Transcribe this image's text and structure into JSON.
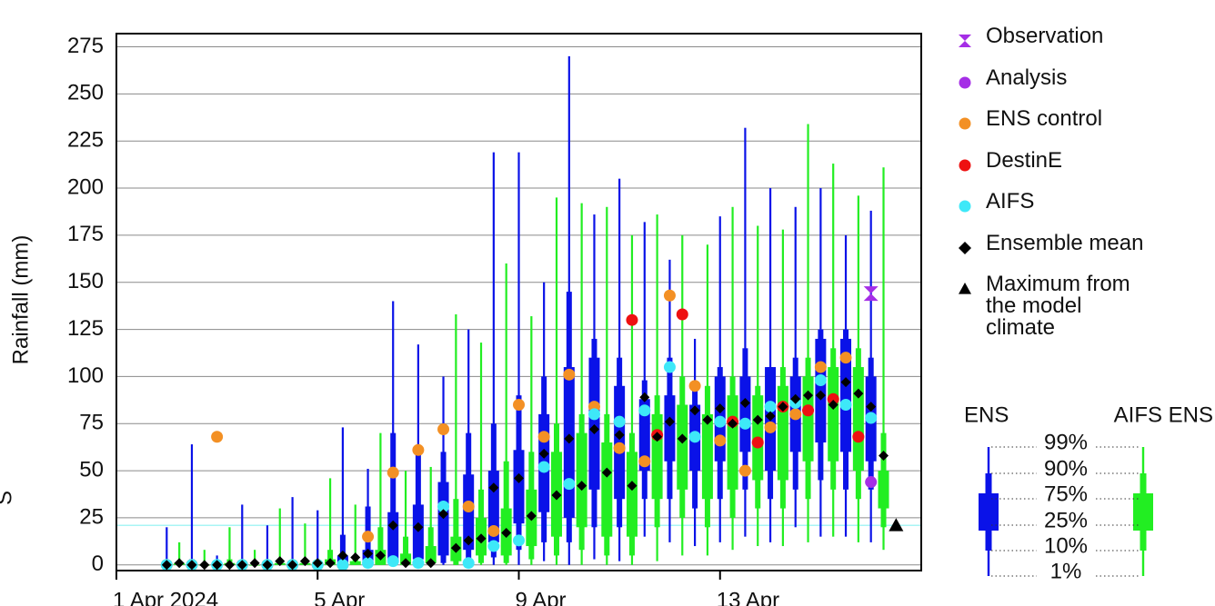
{
  "chart_data": {
    "type": "box",
    "y_label": "Rainfall (mm)",
    "cropped_text": "S",
    "xlim": [
      0,
      16
    ],
    "xticks": [
      {
        "value": 0,
        "label": "1 Apr 2024"
      },
      {
        "value": 4,
        "label": "5 Apr"
      },
      {
        "value": 8,
        "label": "9 Apr"
      },
      {
        "value": 12,
        "label": "13 Apr"
      }
    ],
    "ylim": [
      -3,
      282
    ],
    "yticks": [
      0,
      25,
      50,
      75,
      100,
      125,
      150,
      175,
      200,
      225,
      250,
      275
    ],
    "grid": true,
    "series": [
      {
        "name": "ENS",
        "color": "#0a12e8",
        "x": [
          1,
          1.5,
          2,
          2.5,
          3,
          3.5,
          4,
          4.5,
          5,
          5.5,
          6,
          6.5,
          7,
          7.5,
          8,
          8.5,
          9,
          9.5,
          10,
          10.5,
          11,
          11.5,
          12,
          12.5,
          13,
          13.5,
          14,
          14.5,
          15
        ],
        "p1": [
          0,
          0,
          0,
          0,
          0,
          0,
          0,
          0,
          0,
          0,
          0,
          0,
          0,
          0,
          0,
          2,
          0,
          3,
          2,
          15,
          12,
          10,
          12,
          15,
          12,
          20,
          15,
          15,
          12
        ],
        "p10": [
          0,
          0,
          0,
          0,
          0,
          0,
          0,
          0,
          0,
          0,
          0,
          1,
          2,
          4,
          8,
          12,
          12,
          20,
          20,
          35,
          35,
          30,
          35,
          40,
          35,
          40,
          45,
          40,
          40
        ],
        "p25": [
          0,
          0,
          0,
          0,
          0,
          0,
          0,
          0,
          1,
          2,
          3,
          5,
          8,
          12,
          22,
          28,
          25,
          40,
          35,
          50,
          55,
          50,
          55,
          60,
          50,
          60,
          65,
          60,
          55
        ],
        "p75": [
          0,
          1,
          0,
          0,
          0,
          0,
          0,
          5,
          8,
          28,
          32,
          44,
          48,
          50,
          61,
          80,
          105,
          110,
          95,
          88,
          90,
          85,
          100,
          100,
          105,
          100,
          120,
          120,
          100
        ],
        "p90": [
          1,
          3,
          1,
          1,
          1,
          1,
          1,
          16,
          31,
          70,
          60,
          60,
          70,
          75,
          90,
          100,
          145,
          120,
          110,
          98,
          110,
          95,
          105,
          115,
          105,
          110,
          125,
          125,
          110
        ],
        "p99": [
          20,
          64,
          5,
          32,
          21,
          36,
          29,
          73,
          51,
          140,
          117,
          100,
          125,
          219,
          219,
          150,
          270,
          186,
          205,
          182,
          162,
          120,
          185,
          232,
          200,
          190,
          200,
          175,
          188
        ]
      },
      {
        "name": "AIFS ENS",
        "color": "#22ee22",
        "x": [
          1.25,
          1.75,
          2.25,
          2.75,
          3.25,
          3.75,
          4.25,
          4.75,
          5.25,
          5.75,
          6.25,
          6.75,
          7.25,
          7.75,
          8.25,
          8.75,
          9.25,
          9.75,
          10.25,
          10.75,
          11.25,
          11.75,
          12.25,
          12.75,
          13.25,
          13.75,
          14.25,
          14.75,
          15.25
        ],
        "p1": [
          0,
          0,
          0,
          0,
          0,
          0,
          0,
          0,
          0,
          0,
          0,
          0,
          0,
          0,
          0,
          0,
          0,
          0,
          0,
          2,
          5,
          5,
          8,
          10,
          10,
          12,
          15,
          12,
          8
        ],
        "p10": [
          0,
          0,
          0,
          0,
          0,
          0,
          0,
          0,
          0,
          0,
          0,
          0,
          1,
          1,
          3,
          5,
          8,
          5,
          5,
          20,
          25,
          20,
          25,
          30,
          30,
          35,
          40,
          35,
          20
        ],
        "p25": [
          0,
          0,
          0,
          0,
          0,
          0,
          0,
          0,
          0,
          0,
          1,
          2,
          5,
          5,
          10,
          15,
          20,
          15,
          15,
          35,
          40,
          35,
          40,
          45,
          45,
          55,
          55,
          50,
          30
        ],
        "p75": [
          1,
          0,
          1,
          0,
          1,
          1,
          3,
          2,
          8,
          6,
          10,
          15,
          25,
          30,
          40,
          60,
          70,
          65,
          60,
          80,
          85,
          80,
          90,
          90,
          95,
          100,
          105,
          105,
          50
        ],
        "p90": [
          2,
          1,
          3,
          1,
          3,
          2,
          8,
          5,
          20,
          15,
          20,
          35,
          40,
          55,
          60,
          75,
          80,
          80,
          70,
          90,
          100,
          95,
          100,
          95,
          105,
          110,
          115,
          115,
          70
        ],
        "p99": [
          12,
          8,
          20,
          8,
          30,
          22,
          46,
          32,
          70,
          50,
          52,
          133,
          118,
          160,
          132,
          195,
          192,
          190,
          175,
          186,
          175,
          170,
          190,
          180,
          178,
          234,
          213,
          196,
          211
        ]
      }
    ],
    "markers": [
      {
        "name": "Observation",
        "color": "#a52ee6",
        "symbol": "hourglass",
        "x": [
          15
        ],
        "values": [
          144
        ]
      },
      {
        "name": "Analysis",
        "color": "#a52ee6",
        "symbol": "circle",
        "x": [
          15
        ],
        "values": [
          44
        ]
      },
      {
        "name": "ENS control",
        "color": "#f39024",
        "symbol": "circle",
        "x": [
          1,
          1.5,
          2,
          2.5,
          3,
          3.5,
          4,
          4.5,
          5,
          5.5,
          6,
          6.5,
          7,
          7.5,
          8,
          8.5,
          9,
          9.5,
          10,
          10.5,
          11,
          11.5,
          12,
          12.5,
          13,
          13.5,
          14,
          14.5,
          15
        ],
        "values": [
          0,
          0,
          68,
          0,
          0,
          0,
          0,
          0,
          15,
          49,
          61,
          72,
          31,
          18,
          85,
          68,
          101,
          84,
          62,
          55,
          143,
          95,
          66,
          50,
          73,
          80,
          105,
          110,
          null
        ]
      },
      {
        "name": "DestinE",
        "color": "#ee1111",
        "symbol": "circle",
        "x": [
          10.25,
          10.75,
          11.25,
          12.25,
          12.75,
          13.25,
          13.75,
          14.25,
          14.75
        ],
        "values": [
          130,
          69,
          133,
          76,
          65,
          84,
          82,
          88,
          68
        ]
      },
      {
        "name": "AIFS",
        "color": "#3ee8f8",
        "symbol": "circle",
        "x": [
          1,
          1.5,
          2,
          2.5,
          3,
          3.5,
          4,
          4.5,
          5,
          5.5,
          6,
          6.5,
          7,
          7.5,
          8,
          8.5,
          9,
          9.5,
          10,
          10.5,
          11,
          11.5,
          12,
          12.5,
          13,
          13.5,
          14,
          14.5,
          15
        ],
        "values": [
          0,
          0,
          0,
          0,
          0,
          0,
          0,
          0,
          1,
          2,
          1,
          31,
          1,
          10,
          13,
          52,
          43,
          80,
          76,
          82,
          105,
          68,
          76,
          75,
          84,
          86,
          98,
          85,
          78
        ]
      },
      {
        "name": "Ensemble mean",
        "color": "#000000",
        "symbol": "diamond",
        "x": [
          1,
          1.25,
          1.5,
          1.75,
          2,
          2.25,
          2.5,
          2.75,
          3,
          3.25,
          3.5,
          3.75,
          4,
          4.25,
          4.5,
          4.75,
          5,
          5.25,
          5.5,
          5.75,
          6,
          6.25,
          6.5,
          6.75,
          7,
          7.25,
          7.5,
          7.75,
          8,
          8.25,
          8.5,
          8.75,
          9,
          9.25,
          9.5,
          9.75,
          10,
          10.25,
          10.5,
          10.75,
          11,
          11.25,
          11.5,
          11.75,
          12,
          12.25,
          12.5,
          12.75,
          13,
          13.25,
          13.5,
          13.75,
          14,
          14.25,
          14.5,
          14.75,
          15,
          15.25
        ],
        "values": [
          0,
          1,
          0,
          0,
          0,
          0,
          0,
          1,
          0,
          2,
          0,
          2,
          1,
          1,
          5,
          4,
          6,
          5,
          21,
          1,
          20,
          1,
          27,
          9,
          13,
          14,
          41,
          17,
          46,
          26,
          59,
          37,
          67,
          42,
          72,
          49,
          69,
          42,
          89,
          68,
          76,
          67,
          82,
          77,
          83,
          75,
          86,
          77,
          79,
          84,
          88,
          90,
          90,
          85,
          97,
          91,
          84,
          58
        ]
      },
      {
        "name": "Maximum from the model climate",
        "color": "#000000",
        "symbol": "triangle",
        "line_color": "#a8f4f4",
        "x": [
          15.5
        ],
        "values": [
          21
        ]
      }
    ],
    "key": {
      "labels": [
        "99%",
        "90%",
        "75%",
        "25%",
        "10%",
        "1%"
      ]
    }
  }
}
